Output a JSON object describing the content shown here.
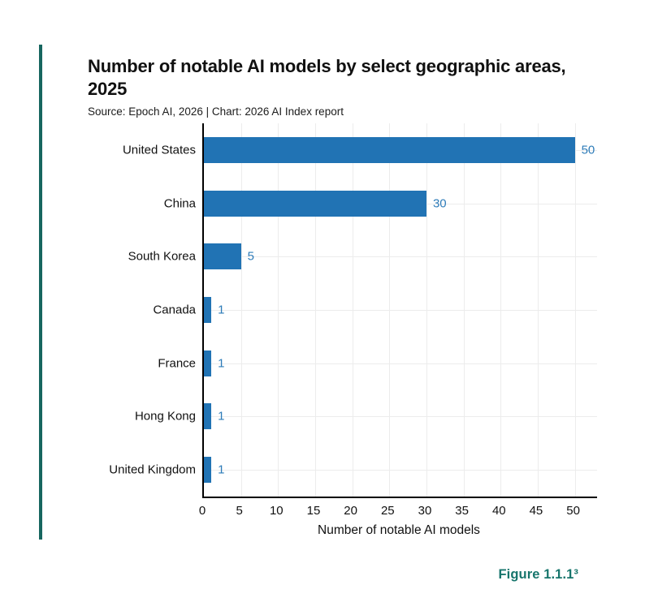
{
  "page": {
    "background": "#ffffff",
    "accent_line_color": "#17665f",
    "figure_label_color": "#17756c"
  },
  "header": {
    "title": "Number of notable AI models by select geographic areas, 2025",
    "source_line": "Source: Epoch AI, 2026 | Chart: 2026 AI Index report"
  },
  "figure_label": "Figure 1.1.1³",
  "chart_data": {
    "type": "bar",
    "orientation": "horizontal",
    "title": "Number of notable AI models by select geographic areas, 2025",
    "categories": [
      "United States",
      "China",
      "South Korea",
      "Canada",
      "France",
      "Hong Kong",
      "United Kingdom"
    ],
    "values": [
      50,
      30,
      5,
      1,
      1,
      1,
      1
    ],
    "xlabel": "Number of notable AI models",
    "ylabel": "",
    "xlim": [
      0,
      53
    ],
    "xticks": [
      0,
      5,
      10,
      15,
      20,
      25,
      30,
      35,
      40,
      45,
      50
    ],
    "grid": true,
    "legend": "none",
    "bar_color": "#2173b4",
    "value_label_color": "#2e7cb9",
    "axis_color": "#000000",
    "gridline_color": "#ececec"
  }
}
